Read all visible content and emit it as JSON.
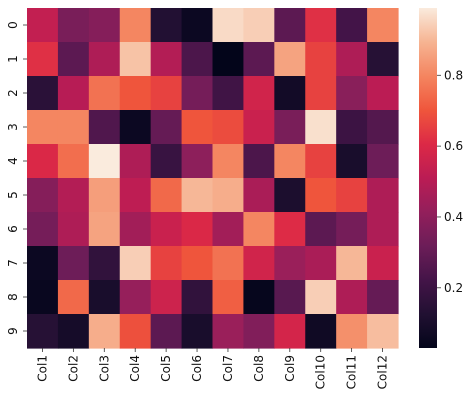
{
  "chart_data": {
    "type": "heatmap",
    "title": "",
    "xlabel": "",
    "ylabel": "",
    "colormap": "rocket",
    "x_categories": [
      "Col1",
      "Col2",
      "Col3",
      "Col4",
      "Col5",
      "Col6",
      "Col7",
      "Col8",
      "Col9",
      "Col10",
      "Col11",
      "Col12"
    ],
    "y_categories": [
      "0",
      "1",
      "2",
      "3",
      "4",
      "5",
      "6",
      "7",
      "8",
      "9"
    ],
    "values": [
      [
        0.53,
        0.35,
        0.38,
        0.8,
        0.13,
        0.06,
        0.96,
        0.94,
        0.28,
        0.62,
        0.22,
        0.8
      ],
      [
        0.62,
        0.28,
        0.48,
        0.92,
        0.49,
        0.24,
        0.03,
        0.28,
        0.86,
        0.66,
        0.48,
        0.14
      ],
      [
        0.15,
        0.5,
        0.76,
        0.7,
        0.66,
        0.34,
        0.21,
        0.57,
        0.08,
        0.66,
        0.39,
        0.51
      ],
      [
        0.8,
        0.8,
        0.25,
        0.06,
        0.3,
        0.7,
        0.68,
        0.55,
        0.35,
        0.97,
        0.2,
        0.26
      ],
      [
        0.6,
        0.75,
        0.99,
        0.48,
        0.19,
        0.4,
        0.8,
        0.24,
        0.8,
        0.66,
        0.1,
        0.32
      ],
      [
        0.38,
        0.49,
        0.85,
        0.52,
        0.74,
        0.9,
        0.88,
        0.47,
        0.11,
        0.7,
        0.66,
        0.48
      ],
      [
        0.34,
        0.48,
        0.86,
        0.45,
        0.55,
        0.6,
        0.45,
        0.8,
        0.61,
        0.28,
        0.34,
        0.48
      ],
      [
        0.06,
        0.32,
        0.17,
        0.94,
        0.66,
        0.7,
        0.76,
        0.57,
        0.43,
        0.47,
        0.9,
        0.55
      ],
      [
        0.05,
        0.74,
        0.1,
        0.42,
        0.56,
        0.17,
        0.72,
        0.04,
        0.27,
        0.94,
        0.48,
        0.3
      ],
      [
        0.14,
        0.09,
        0.88,
        0.69,
        0.28,
        0.1,
        0.43,
        0.37,
        0.58,
        0.07,
        0.82,
        0.91
      ]
    ],
    "colorbar": {
      "range": [
        0.03,
        0.99
      ],
      "ticks": [
        0.2,
        0.4,
        0.6,
        0.8
      ],
      "tick_labels": [
        "0.2",
        "0.4",
        "0.6",
        "0.8"
      ]
    },
    "grid": false,
    "legend": "colorbar-right"
  }
}
